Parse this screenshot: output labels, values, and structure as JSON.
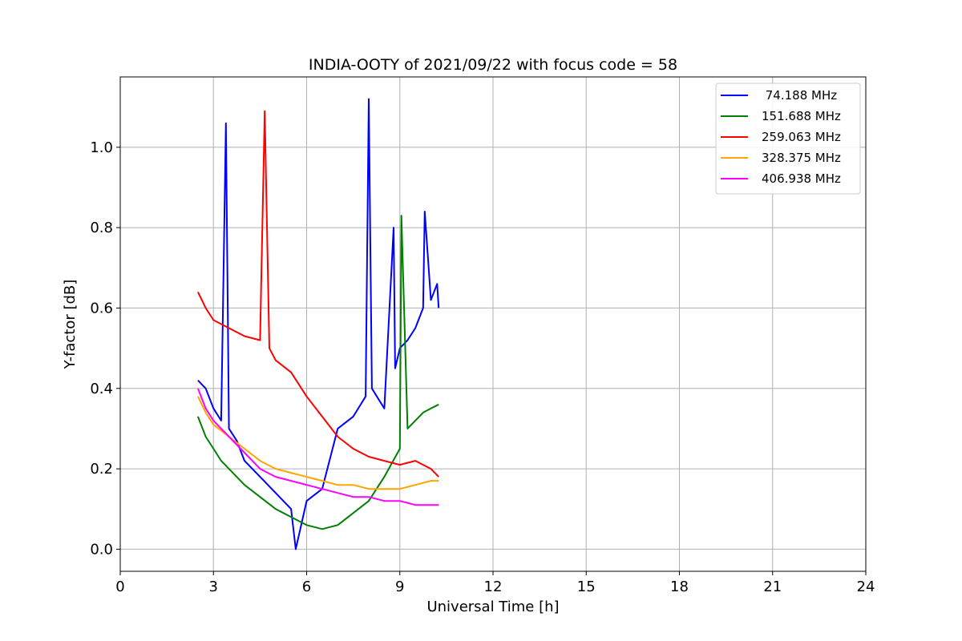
{
  "chart_data": {
    "type": "line",
    "title": "INDIA-OOTY of 2021/09/22 with focus code = 58",
    "xlabel": "Universal Time [h]",
    "ylabel": "Y-factor [dB]",
    "xlim": [
      0,
      24
    ],
    "ylim": [
      -0.055,
      1.175
    ],
    "xticks": [
      0,
      3,
      6,
      9,
      12,
      15,
      18,
      21,
      24
    ],
    "xtick_labels": [
      "0",
      "3",
      "6",
      "9",
      "12",
      "15",
      "18",
      "21",
      "24"
    ],
    "yticks": [
      0.0,
      0.2,
      0.4,
      0.6,
      0.8,
      1.0
    ],
    "ytick_labels": [
      "0.0",
      "0.2",
      "0.4",
      "0.6",
      "0.8",
      "1.0"
    ],
    "grid": true,
    "legend_position": "top-right",
    "series": [
      {
        "name": " 74.188 MHz",
        "color": "#0000ff",
        "x": [
          2.5,
          2.75,
          3.0,
          3.25,
          3.4,
          3.5,
          3.75,
          4.0,
          4.5,
          5.0,
          5.5,
          5.65,
          6.0,
          6.5,
          7.0,
          7.5,
          7.9,
          8.0,
          8.1,
          8.5,
          8.8,
          8.85,
          9.0,
          9.25,
          9.5,
          9.75,
          9.8,
          10.0,
          10.2,
          10.25
        ],
        "y": [
          0.42,
          0.4,
          0.35,
          0.32,
          1.06,
          0.3,
          0.27,
          0.22,
          0.18,
          0.14,
          0.1,
          0.0,
          0.12,
          0.15,
          0.3,
          0.33,
          0.38,
          1.12,
          0.4,
          0.35,
          0.8,
          0.45,
          0.5,
          0.52,
          0.55,
          0.6,
          0.84,
          0.62,
          0.66,
          0.6
        ]
      },
      {
        "name": "151.688 MHz",
        "color": "#008000",
        "x": [
          2.5,
          2.75,
          3.0,
          3.25,
          3.5,
          4.0,
          4.5,
          5.0,
          5.5,
          6.0,
          6.5,
          7.0,
          7.5,
          8.0,
          8.5,
          9.0,
          9.05,
          9.25,
          9.5,
          9.75,
          10.0,
          10.25
        ],
        "y": [
          0.33,
          0.28,
          0.25,
          0.22,
          0.2,
          0.16,
          0.13,
          0.1,
          0.08,
          0.06,
          0.05,
          0.06,
          0.09,
          0.12,
          0.18,
          0.25,
          0.83,
          0.3,
          0.32,
          0.34,
          0.35,
          0.36
        ]
      },
      {
        "name": "259.063 MHz",
        "color": "#ff0000",
        "x": [
          2.5,
          2.75,
          3.0,
          3.5,
          4.0,
          4.5,
          4.65,
          4.8,
          5.0,
          5.5,
          6.0,
          6.5,
          7.0,
          7.5,
          8.0,
          8.5,
          9.0,
          9.5,
          10.0,
          10.25
        ],
        "y": [
          0.64,
          0.6,
          0.57,
          0.55,
          0.53,
          0.52,
          1.09,
          0.5,
          0.47,
          0.44,
          0.38,
          0.33,
          0.28,
          0.25,
          0.23,
          0.22,
          0.21,
          0.22,
          0.2,
          0.18
        ]
      },
      {
        "name": "328.375 MHz",
        "color": "#ffa500",
        "x": [
          2.5,
          2.75,
          3.0,
          3.5,
          4.0,
          4.5,
          5.0,
          5.5,
          6.0,
          6.5,
          7.0,
          7.5,
          8.0,
          8.5,
          9.0,
          9.5,
          10.0,
          10.25
        ],
        "y": [
          0.38,
          0.34,
          0.31,
          0.28,
          0.25,
          0.22,
          0.2,
          0.19,
          0.18,
          0.17,
          0.16,
          0.16,
          0.15,
          0.15,
          0.15,
          0.16,
          0.17,
          0.17
        ]
      },
      {
        "name": "406.938 MHz",
        "color": "#ff00ff",
        "x": [
          2.5,
          2.75,
          3.0,
          3.5,
          4.0,
          4.5,
          5.0,
          5.5,
          6.0,
          6.5,
          7.0,
          7.5,
          8.0,
          8.5,
          9.0,
          9.5,
          10.0,
          10.25
        ],
        "y": [
          0.4,
          0.35,
          0.32,
          0.28,
          0.24,
          0.2,
          0.18,
          0.17,
          0.16,
          0.15,
          0.14,
          0.13,
          0.13,
          0.12,
          0.12,
          0.11,
          0.11,
          0.11
        ]
      }
    ]
  }
}
